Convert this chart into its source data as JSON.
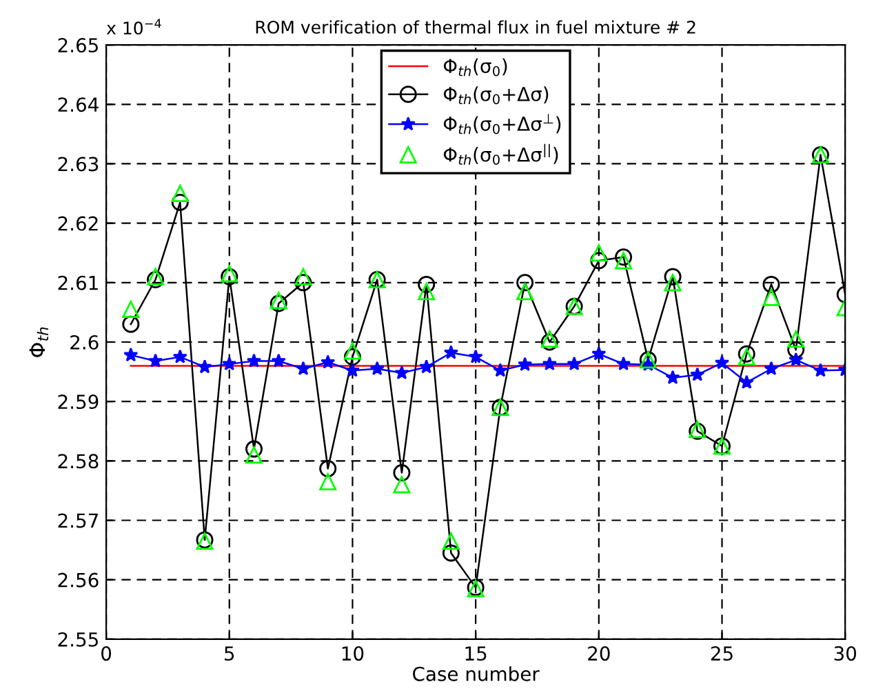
{
  "chart_data": {
    "type": "line",
    "title": "ROM verification of thermal flux in fuel mixture # 2",
    "xlabel": "Case number",
    "ylabel": "Φ$_{th}$",
    "annotations": [
      "x 10$^{−4}$"
    ],
    "xlim": [
      0,
      30
    ],
    "xticks": [
      0,
      5,
      10,
      15,
      20,
      25,
      30
    ],
    "ylim": [
      2.55,
      2.65
    ],
    "yticks": [
      2.55,
      2.56,
      2.57,
      2.58,
      2.59,
      2.6,
      2.61,
      2.62,
      2.63,
      2.64,
      2.65
    ],
    "grid": true,
    "legend": "top",
    "series": [
      {
        "name": "Φ$_{th}$(σ$_{0}$)",
        "color": "#ff0000",
        "marker": "none",
        "line_style": "solid",
        "x": [
          1,
          30
        ],
        "values": [
          2.596,
          2.596
        ]
      },
      {
        "name": "Φ$_{th}$(σ$_{0}$+Δσ)",
        "color": "#000000",
        "marker": "circle",
        "line_style": "solid",
        "x": [
          1,
          2,
          3,
          4,
          5,
          6,
          7,
          8,
          9,
          10,
          11,
          12,
          13,
          14,
          15,
          16,
          17,
          18,
          19,
          20,
          21,
          22,
          23,
          24,
          25,
          26,
          27,
          28,
          29,
          30
        ],
        "values": [
          2.603,
          2.6105,
          2.6235,
          2.5667,
          2.611,
          2.582,
          2.6065,
          2.61,
          2.5787,
          2.5975,
          2.6105,
          2.578,
          2.6097,
          2.5645,
          2.5587,
          2.589,
          2.61,
          2.6,
          2.606,
          2.6137,
          2.6143,
          2.597,
          2.611,
          2.585,
          2.5825,
          2.598,
          2.6097,
          2.5987,
          2.6315,
          2.608
        ]
      },
      {
        "name": "Φ$_{th}$(σ$_{0}$+Δσ$^{⊥}$)",
        "color": "#0000ff",
        "marker": "star",
        "line_style": "solid",
        "x": [
          1,
          2,
          3,
          4,
          5,
          6,
          7,
          8,
          9,
          10,
          11,
          12,
          13,
          14,
          15,
          16,
          17,
          18,
          19,
          20,
          21,
          22,
          23,
          24,
          25,
          26,
          27,
          28,
          29,
          30
        ],
        "values": [
          2.5978,
          2.5968,
          2.5975,
          2.5958,
          2.5963,
          2.5968,
          2.5968,
          2.5955,
          2.5966,
          2.5952,
          2.5955,
          2.5948,
          2.5958,
          2.5982,
          2.5975,
          2.5952,
          2.5962,
          2.5963,
          2.5963,
          2.598,
          2.5963,
          2.5962,
          2.594,
          2.5945,
          2.5965,
          2.5932,
          2.5955,
          2.597,
          2.5952,
          2.5953
        ]
      },
      {
        "name": "Φ$_{th}$(σ$_{0}$+Δσ$^{||}$)",
        "color": "#00ff00",
        "type": "scatter",
        "marker": "triangle",
        "x": [
          1,
          2,
          3,
          4,
          5,
          6,
          7,
          8,
          9,
          10,
          11,
          12,
          13,
          14,
          15,
          16,
          17,
          18,
          19,
          20,
          21,
          22,
          23,
          24,
          25,
          26,
          27,
          28,
          29,
          30
        ],
        "values": [
          2.6055,
          2.611,
          2.625,
          2.5665,
          2.6115,
          2.581,
          2.607,
          2.611,
          2.5765,
          2.5985,
          2.6105,
          2.576,
          2.6085,
          2.5665,
          2.5585,
          2.589,
          2.6085,
          2.6005,
          2.606,
          2.615,
          2.6137,
          2.597,
          2.61,
          2.5853,
          2.5825,
          2.5975,
          2.6075,
          2.6005,
          2.6315,
          2.6058
        ]
      }
    ]
  }
}
